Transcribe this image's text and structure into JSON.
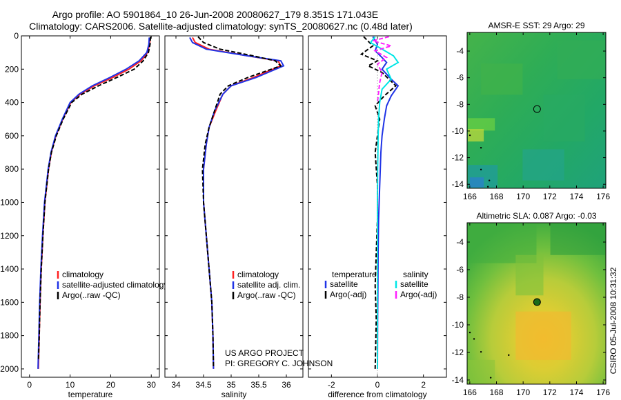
{
  "header": {
    "title_line1": "Argo profile: AO 5901864_10 26-Jun-2008 20080627_179 8.351S 171.043E",
    "title_line2": "Climatology: CARS2006. Satellite-adjusted climatology: synTS_20080627.nc (0.48d later)"
  },
  "footer": {
    "credit_line1": "US ARGO PROJECT",
    "credit_line2": "PI: GREGORY C. JOHNSON",
    "timestamp": "CSIRO 05-Jul-2008 10:31:32"
  },
  "colors": {
    "climatology": "#ff2020",
    "satellite": "#1f33e6",
    "argo": "#000000",
    "satellite_salinity": "#00e6e6",
    "argo_salinity": "#ff20ff",
    "marker": "#1a6b1a"
  },
  "chart_data": [
    {
      "id": "temperature",
      "type": "line",
      "xlabel": "temperature",
      "ylabel": "",
      "xlim": [
        -2,
        32
      ],
      "ylim": [
        2050,
        0
      ],
      "xticks": [
        0,
        10,
        20,
        30
      ],
      "yticks": [
        0,
        200,
        400,
        600,
        800,
        1000,
        1200,
        1400,
        1600,
        1800,
        2000
      ],
      "legend": {
        "entries": [
          {
            "label": "climatology",
            "color": "#ff2020"
          },
          {
            "label": "satellite-adjusted climatology",
            "color": "#1f33e6"
          },
          {
            "label": "Argo(..raw -QC)",
            "color": "#000000"
          }
        ]
      },
      "series": [
        {
          "name": "climatology",
          "color": "#ff2020",
          "dash": "",
          "x": [
            29.7,
            29.6,
            29.1,
            27.5,
            24.5,
            20.5,
            16.0,
            12.5,
            10.2,
            8.2,
            6.5,
            5.4,
            4.7,
            3.8,
            3.3,
            2.9,
            2.6,
            2.4,
            2.2
          ],
          "y": [
            10,
            50,
            100,
            150,
            200,
            250,
            300,
            350,
            400,
            500,
            600,
            700,
            800,
            1000,
            1200,
            1400,
            1600,
            1800,
            2000
          ]
        },
        {
          "name": "satellite-adjusted climatology",
          "color": "#1f33e6",
          "dash": "",
          "x": [
            29.5,
            29.4,
            28.9,
            27.0,
            23.8,
            19.8,
            15.5,
            12.2,
            10.0,
            8.1,
            6.4,
            5.3,
            4.6,
            3.7,
            3.2,
            2.8,
            2.5,
            2.3,
            2.1
          ],
          "y": [
            10,
            50,
            100,
            150,
            200,
            250,
            300,
            350,
            400,
            500,
            600,
            700,
            800,
            1000,
            1200,
            1400,
            1600,
            1800,
            2000
          ]
        },
        {
          "name": "Argo(..raw -QC)",
          "color": "#000000",
          "dash": "6,3",
          "x": [
            29.8,
            29.7,
            29.3,
            28.0,
            25.8,
            21.5,
            17.0,
            13.0,
            10.4,
            8.3,
            6.6,
            5.4,
            4.7,
            3.8,
            3.3,
            2.9,
            2.6,
            2.4,
            2.2
          ],
          "y": [
            5,
            50,
            100,
            150,
            200,
            250,
            300,
            350,
            400,
            500,
            600,
            700,
            800,
            1000,
            1200,
            1400,
            1600,
            1800,
            1950
          ]
        }
      ]
    },
    {
      "id": "salinity",
      "type": "line",
      "xlabel": "salinity",
      "xlim": [
        33.8,
        36.3
      ],
      "ylim": [
        2050,
        0
      ],
      "xticks": [
        34,
        34.5,
        35,
        35.5,
        36
      ],
      "xtick_labels": [
        "34",
        "34.5",
        "35",
        "35.5",
        "36"
      ],
      "legend": {
        "entries": [
          {
            "label": "climatology",
            "color": "#ff2020"
          },
          {
            "label": "satellite adj. clim.",
            "color": "#1f33e6"
          },
          {
            "label": "Argo(..raw -QC)",
            "color": "#000000"
          }
        ]
      },
      "series": [
        {
          "name": "climatology",
          "color": "#ff2020",
          "dash": "",
          "x": [
            34.3,
            34.35,
            34.6,
            35.3,
            35.85,
            35.9,
            35.4,
            35.0,
            34.85,
            34.72,
            34.6,
            34.55,
            34.5,
            34.5,
            34.55,
            34.6,
            34.65,
            34.67,
            34.68
          ],
          "y": [
            10,
            40,
            80,
            120,
            150,
            180,
            250,
            300,
            350,
            450,
            550,
            650,
            800,
            1000,
            1200,
            1400,
            1600,
            1800,
            2000
          ]
        },
        {
          "name": "satellite adj. clim.",
          "color": "#1f33e6",
          "dash": "",
          "x": [
            34.25,
            34.3,
            34.55,
            35.3,
            35.9,
            35.95,
            35.45,
            35.0,
            34.85,
            34.7,
            34.6,
            34.55,
            34.5,
            34.5,
            34.55,
            34.6,
            34.65,
            34.67,
            34.68
          ],
          "y": [
            10,
            40,
            80,
            120,
            150,
            180,
            250,
            300,
            350,
            450,
            550,
            650,
            800,
            1000,
            1200,
            1400,
            1600,
            1800,
            2000
          ]
        },
        {
          "name": "Argo(..raw -QC)",
          "color": "#000000",
          "dash": "6,3",
          "x": [
            34.4,
            34.5,
            34.8,
            35.4,
            35.8,
            35.9,
            35.3,
            34.95,
            34.8,
            34.7,
            34.6,
            34.53,
            34.48,
            34.5,
            34.55,
            34.6,
            34.65,
            34.67,
            34.68
          ],
          "y": [
            5,
            40,
            80,
            120,
            150,
            180,
            250,
            300,
            350,
            450,
            550,
            650,
            800,
            1000,
            1200,
            1400,
            1600,
            1800,
            1990
          ]
        }
      ]
    },
    {
      "id": "difference",
      "type": "line",
      "xlabel": "difference from climatology",
      "xlim": [
        -3,
        3
      ],
      "ylim": [
        2050,
        0
      ],
      "xticks": [
        -2,
        0,
        2
      ],
      "legend": {
        "columns": [
          {
            "header": "temperature",
            "entries": [
              {
                "label": "satellite",
                "color": "#1f33e6"
              },
              {
                "label": "Argo(-adj)",
                "color": "#000000"
              }
            ]
          },
          {
            "header": "salinity",
            "entries": [
              {
                "label": "satellite",
                "color": "#00e6e6"
              },
              {
                "label": "Argo(-adj)",
                "color": "#ff20ff"
              }
            ]
          }
        ]
      },
      "series": [
        {
          "name": "temperature satellite",
          "color": "#1f33e6",
          "dash": "",
          "x": [
            -0.2,
            0.0,
            -0.1,
            0.2,
            0.4,
            0.2,
            0.6,
            0.9,
            0.6,
            0.4,
            0.3,
            0.2,
            0.15,
            0.1,
            0.05,
            0.03,
            0.02,
            0.01,
            0.0
          ],
          "y": [
            5,
            50,
            90,
            130,
            160,
            200,
            260,
            300,
            360,
            420,
            500,
            600,
            700,
            900,
            1100,
            1300,
            1500,
            1700,
            2000
          ]
        },
        {
          "name": "temperature Argo(-adj)",
          "color": "#000000",
          "dash": "6,3",
          "x": [
            -0.6,
            -0.2,
            -0.7,
            0.0,
            -0.4,
            0.2,
            0.5,
            0.8,
            0.3,
            -0.1,
            0.1,
            0.0,
            -0.1,
            0.0,
            0.0,
            -0.05,
            -0.1,
            -0.05,
            -0.1
          ],
          "y": [
            5,
            60,
            110,
            150,
            180,
            220,
            260,
            300,
            360,
            420,
            500,
            600,
            700,
            900,
            1100,
            1300,
            1500,
            1700,
            2000
          ]
        },
        {
          "name": "salinity satellite",
          "color": "#00e6e6",
          "dash": "",
          "x": [
            -0.1,
            -0.3,
            0.2,
            0.7,
            0.9,
            0.4,
            0.6,
            0.2,
            0.1,
            0.05,
            0.03,
            0.02,
            0.01,
            0.0,
            0.0,
            0.0,
            0.0,
            0.0,
            0.0
          ],
          "y": [
            5,
            40,
            80,
            120,
            160,
            200,
            260,
            320,
            400,
            500,
            600,
            700,
            800,
            1000,
            1200,
            1400,
            1600,
            1800,
            2000
          ]
        },
        {
          "name": "salinity Argo(-adj)",
          "color": "#ff20ff",
          "dash": "6,3",
          "x": [
            0.5,
            -0.2,
            0.6,
            -0.1,
            0.4,
            0.0,
            0.2,
            0.1,
            0.05,
            0.0
          ],
          "y": [
            5,
            30,
            60,
            90,
            130,
            170,
            220,
            280,
            340,
            400
          ]
        }
      ]
    },
    {
      "id": "sst_map",
      "type": "heatmap",
      "title": "AMSR-E SST: 29  Argo: 29",
      "xlim": [
        165.8,
        176.2
      ],
      "ylim": [
        -14.3,
        -2.6
      ],
      "xticks": [
        166,
        168,
        170,
        172,
        174,
        176
      ],
      "yticks": [
        -4,
        -6,
        -8,
        -10,
        -12,
        -14
      ],
      "argo_value": 29,
      "sat_value": 29,
      "marker": {
        "lon": 171.043,
        "lat": -8.351,
        "filled": false
      }
    },
    {
      "id": "sla_map",
      "type": "heatmap",
      "title": "Altimetric SLA: 0.087  Argo: -0.03",
      "xlim": [
        165.8,
        176.2
      ],
      "ylim": [
        -14.3,
        -2.6
      ],
      "xticks": [
        166,
        168,
        170,
        172,
        174,
        176
      ],
      "yticks": [
        -4,
        -6,
        -8,
        -10,
        -12,
        -14
      ],
      "argo_value": -0.03,
      "sat_value": 0.087,
      "marker": {
        "lon": 171.043,
        "lat": -8.351,
        "filled": true
      }
    }
  ]
}
